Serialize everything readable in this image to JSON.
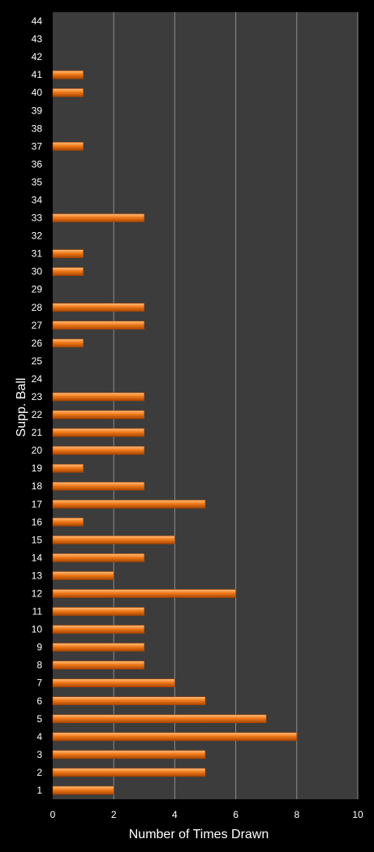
{
  "chart_data": {
    "type": "bar",
    "orientation": "horizontal",
    "xlabel": "Number of Times Drawn",
    "ylabel": "Supp. Ball",
    "xlim": [
      0,
      10
    ],
    "x_ticks": [
      0,
      2,
      4,
      6,
      8,
      10
    ],
    "grid": true,
    "categories": [
      "1",
      "2",
      "3",
      "4",
      "5",
      "6",
      "7",
      "8",
      "9",
      "10",
      "11",
      "12",
      "13",
      "14",
      "15",
      "16",
      "17",
      "18",
      "19",
      "20",
      "21",
      "22",
      "23",
      "24",
      "25",
      "26",
      "27",
      "28",
      "29",
      "30",
      "31",
      "32",
      "33",
      "34",
      "35",
      "36",
      "37",
      "38",
      "39",
      "40",
      "41",
      "42",
      "43",
      "44"
    ],
    "values": [
      2,
      5,
      5,
      8,
      7,
      5,
      4,
      3,
      3,
      3,
      3,
      6,
      2,
      3,
      4,
      1,
      5,
      3,
      1,
      3,
      3,
      3,
      3,
      0,
      0,
      1,
      3,
      3,
      0,
      1,
      1,
      0,
      3,
      0,
      0,
      0,
      1,
      0,
      0,
      1,
      1,
      0,
      0,
      0
    ],
    "colors": {
      "background": "#000000",
      "plot_area": "#3c3c3c",
      "gridline": "#8c8c8c",
      "bar": "#f07a1a",
      "bar_highlight": "#ffc080",
      "bar_shadow": "#a84500",
      "text": "#ffffff"
    }
  }
}
